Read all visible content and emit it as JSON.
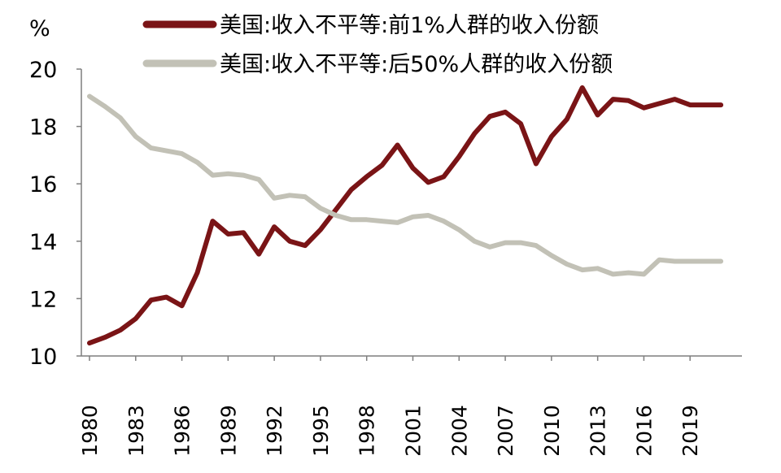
{
  "chart_data": {
    "type": "line",
    "unit_label": "%",
    "y_axis": {
      "min": 10,
      "max": 20,
      "ticks": [
        10,
        12,
        14,
        16,
        18,
        20
      ]
    },
    "x_axis": {
      "min": 1980,
      "max": 2022,
      "tick_labels": [
        "1980",
        "1983",
        "1986",
        "1989",
        "1992",
        "1995",
        "1998",
        "2001",
        "2004",
        "2007",
        "2010",
        "2013",
        "2016",
        "2019"
      ]
    },
    "grid": false,
    "legend_position": "top",
    "x": [
      1980,
      1981,
      1982,
      1983,
      1984,
      1985,
      1986,
      1987,
      1988,
      1989,
      1990,
      1991,
      1992,
      1993,
      1994,
      1995,
      1996,
      1997,
      1998,
      1999,
      2000,
      2001,
      2002,
      2003,
      2004,
      2005,
      2006,
      2007,
      2008,
      2009,
      2010,
      2011,
      2012,
      2013,
      2014,
      2015,
      2016,
      2017,
      2018,
      2019,
      2020,
      2021
    ],
    "series": [
      {
        "name": "美国:收入不平等:前1%人群的收入份额",
        "color": "#7a1416",
        "values": [
          10.45,
          10.65,
          10.9,
          11.3,
          11.95,
          12.05,
          11.75,
          12.9,
          14.7,
          14.25,
          14.3,
          13.55,
          14.5,
          14.0,
          13.85,
          14.4,
          15.1,
          15.8,
          16.25,
          16.65,
          17.35,
          16.55,
          16.05,
          16.25,
          16.95,
          17.75,
          18.35,
          18.5,
          18.1,
          16.7,
          17.65,
          18.25,
          19.35,
          18.4,
          18.95,
          18.9,
          18.65,
          18.8,
          18.95,
          18.75,
          18.75,
          18.75
        ]
      },
      {
        "name": "美国:收入不平等:后50%人群的收入份额",
        "color": "#c2c1b6",
        "values": [
          19.05,
          18.7,
          18.3,
          17.65,
          17.25,
          17.15,
          17.05,
          16.75,
          16.3,
          16.35,
          16.3,
          16.15,
          15.5,
          15.6,
          15.55,
          15.15,
          14.9,
          14.75,
          14.75,
          14.7,
          14.65,
          14.85,
          14.9,
          14.7,
          14.4,
          14.0,
          13.8,
          13.95,
          13.95,
          13.85,
          13.5,
          13.2,
          13.0,
          13.05,
          12.85,
          12.9,
          12.85,
          13.35,
          13.3,
          13.3,
          13.3,
          13.3
        ]
      }
    ]
  }
}
